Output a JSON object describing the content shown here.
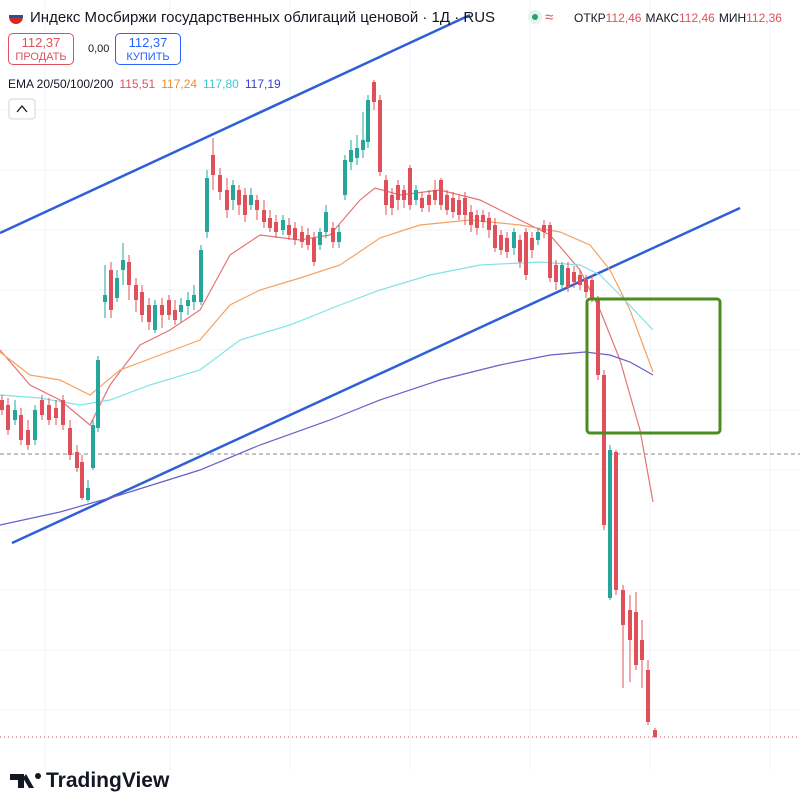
{
  "header": {
    "title": "Индекс Мосбиржи государственных облигаций ценовой · 1Д · RUS",
    "ohlc": [
      {
        "label": "ОТКР",
        "value": "112,46"
      },
      {
        "label": "МАКС",
        "value": "112,46"
      },
      {
        "label": "МИН",
        "value": "112,36"
      }
    ]
  },
  "trade": {
    "sell_price": "112,37",
    "sell_label": "ПРОДАТЬ",
    "spread": "0,00",
    "buy_price": "112,37",
    "buy_label": "КУПИТЬ"
  },
  "indicator": {
    "name": "EMA 20/50/100/200",
    "values": [
      "115,51",
      "117,24",
      "117,80",
      "117,19"
    ]
  },
  "brand": "TradingView"
}
